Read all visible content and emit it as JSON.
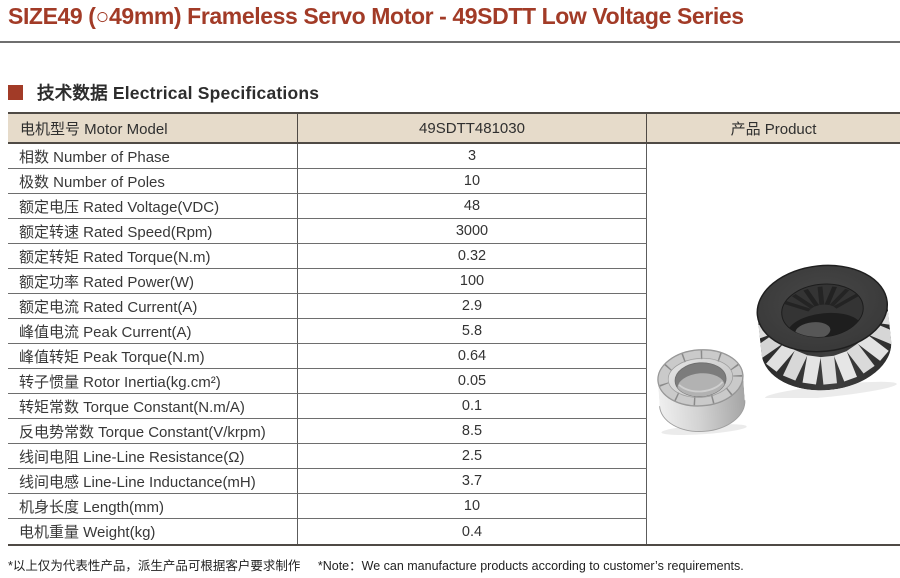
{
  "page_title": "SIZE49 (○49mm) Frameless Servo Motor - 49SDTT Low Voltage Series",
  "section": {
    "heading": "技术数据 Electrical Specifications"
  },
  "table": {
    "header": {
      "model_label": "电机型号 Motor Model",
      "model_number": "49SDTT481030",
      "product_label": "产品 Product"
    },
    "rows": [
      {
        "label": "相数 Number of Phase",
        "value": "3"
      },
      {
        "label": "极数 Number of Poles",
        "value": "10"
      },
      {
        "label": "额定电压 Rated Voltage(VDC)",
        "value": "48"
      },
      {
        "label": "额定转速 Rated Speed(Rpm)",
        "value": "3000"
      },
      {
        "label": "额定转矩 Rated Torque(N.m)",
        "value": "0.32"
      },
      {
        "label": "额定功率 Rated Power(W)",
        "value": "100"
      },
      {
        "label": "额定电流 Rated Current(A)",
        "value": "2.9"
      },
      {
        "label": "峰值电流 Peak Current(A)",
        "value": "5.8"
      },
      {
        "label": "峰值转矩 Peak Torque(N.m)",
        "value": "0.64"
      },
      {
        "label": "转子惯量 Rotor Inertia(kg.cm²)",
        "value": "0.05"
      },
      {
        "label": "转矩常数 Torque Constant(N.m/A)",
        "value": "0.1"
      },
      {
        "label": "反电势常数 Torque Constant(V/krpm)",
        "value": "8.5"
      },
      {
        "label": "线间电阻 Line-Line Resistance(Ω)",
        "value": "2.5"
      },
      {
        "label": "线间电感 Line-Line Inductance(mH)",
        "value": "3.7"
      },
      {
        "label": "机身长度 Length(mm)",
        "value": "10"
      },
      {
        "label": "电机重量 Weight(kg)",
        "value": "0.4"
      }
    ]
  },
  "product": {
    "images": [
      {
        "name": "rotor-ring-photo",
        "description": "silver frameless rotor ring"
      },
      {
        "name": "stator-ring-photo",
        "description": "black frameless stator ring"
      }
    ]
  },
  "footer": {
    "note_cn": "*以上仅为代表性产品，派生产品可根据客户要求制作",
    "note_en": "*Note：We can manufacture products according to customer’s requirements."
  },
  "colors": {
    "accent": "#A23B27",
    "header_bg": "#E6DBCA",
    "border_dark": "#4F4A45",
    "row_line": "#6E6E6E",
    "col_line": "#5C5C5C",
    "text": "#333333",
    "rule": "#6F6F6F"
  }
}
